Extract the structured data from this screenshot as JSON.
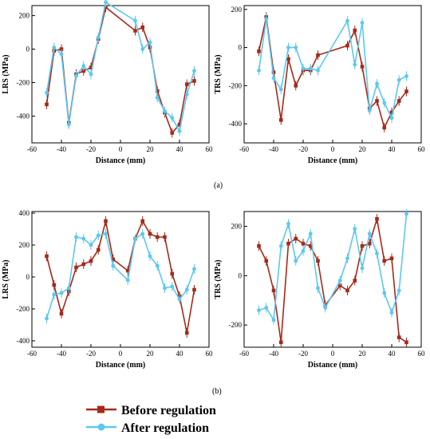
{
  "captions": [
    "(a)",
    "(b)"
  ],
  "legend": [
    {
      "label": "Before regulation",
      "color": "#a52a1a",
      "marker": "square"
    },
    {
      "label": "After regulation",
      "color": "#5cc8f0",
      "marker": "circle"
    }
  ],
  "chart_data": [
    {
      "type": "line",
      "panel": "a-left",
      "xlabel": "Distance (mm)",
      "ylabel": "LRS (MPa)",
      "xlim": [
        -60,
        60
      ],
      "ylim": [
        -560,
        260
      ],
      "xticks": [
        -60,
        -40,
        -20,
        0,
        20,
        40,
        60
      ],
      "yticks": [
        -400,
        -200,
        0,
        200
      ],
      "series": [
        {
          "name": "Before regulation",
          "x": [
            -50,
            -45,
            -40,
            -35,
            -30,
            -25,
            -20,
            -15,
            -10,
            10,
            15,
            20,
            25,
            30,
            35,
            40,
            45,
            50
          ],
          "y": [
            -330,
            -10,
            0,
            -440,
            -150,
            -130,
            -110,
            60,
            250,
            110,
            130,
            10,
            -250,
            -380,
            -500,
            -450,
            -210,
            -190
          ]
        },
        {
          "name": "After regulation",
          "x": [
            -50,
            -45,
            -40,
            -35,
            -30,
            -25,
            -20,
            -15,
            -10,
            10,
            15,
            20,
            25,
            30,
            35,
            40,
            45,
            50
          ],
          "y": [
            -260,
            10,
            -30,
            -450,
            -160,
            -100,
            -150,
            70,
            280,
            170,
            0,
            40,
            -290,
            -370,
            -410,
            -490,
            -270,
            -130
          ]
        }
      ]
    },
    {
      "type": "line",
      "panel": "a-right",
      "xlabel": "Distance (mm)",
      "ylabel": "TRS (MPa)",
      "xlim": [
        -60,
        60
      ],
      "ylim": [
        -500,
        220
      ],
      "xticks": [
        -60,
        -40,
        -20,
        0,
        20,
        40,
        60
      ],
      "yticks": [
        -400,
        -200,
        0,
        200
      ],
      "series": [
        {
          "name": "Before regulation",
          "x": [
            -50,
            -45,
            -40,
            -35,
            -30,
            -25,
            -20,
            -15,
            -10,
            10,
            15,
            20,
            25,
            30,
            35,
            40,
            45,
            50
          ],
          "y": [
            -20,
            160,
            -130,
            -380,
            -60,
            -200,
            -120,
            -120,
            -40,
            10,
            90,
            -100,
            -320,
            -280,
            -420,
            -340,
            -280,
            -230
          ]
        },
        {
          "name": "After regulation",
          "x": [
            -50,
            -45,
            -40,
            -35,
            -30,
            -25,
            -20,
            -15,
            -10,
            10,
            15,
            20,
            25,
            30,
            35,
            40,
            45,
            50
          ],
          "y": [
            -120,
            150,
            -160,
            -220,
            0,
            0,
            -110,
            -110,
            -120,
            140,
            -90,
            130,
            -330,
            -190,
            -290,
            -370,
            -170,
            -150
          ]
        }
      ]
    },
    {
      "type": "line",
      "panel": "b-left",
      "xlabel": "Distance (mm)",
      "ylabel": "LRS (MPa)",
      "xlim": [
        -60,
        60
      ],
      "ylim": [
        -440,
        410
      ],
      "xticks": [
        -60,
        -40,
        -20,
        0,
        20,
        40,
        60
      ],
      "yticks": [
        -400,
        -200,
        0,
        200,
        400
      ],
      "series": [
        {
          "name": "Before regulation",
          "x": [
            -50,
            -45,
            -40,
            -35,
            -30,
            -25,
            -20,
            -15,
            -10,
            -5,
            5,
            10,
            15,
            20,
            25,
            30,
            35,
            40,
            45,
            50
          ],
          "y": [
            130,
            -50,
            -230,
            -90,
            60,
            80,
            100,
            170,
            350,
            110,
            40,
            240,
            350,
            270,
            250,
            250,
            20,
            -120,
            -350,
            -80
          ]
        },
        {
          "name": "After regulation",
          "x": [
            -50,
            -45,
            -40,
            -35,
            -30,
            -25,
            -20,
            -15,
            -10,
            -5,
            5,
            10,
            15,
            20,
            25,
            30,
            35,
            40,
            45,
            50
          ],
          "y": [
            -260,
            -110,
            -100,
            -70,
            250,
            240,
            200,
            260,
            270,
            70,
            -20,
            240,
            270,
            130,
            70,
            -70,
            -60,
            -140,
            -80,
            50
          ]
        }
      ]
    },
    {
      "type": "line",
      "panel": "b-right",
      "xlabel": "Distance (mm)",
      "ylabel": "TRS (MPa)",
      "xlim": [
        -60,
        60
      ],
      "ylim": [
        -290,
        260
      ],
      "xticks": [
        -60,
        -40,
        -20,
        0,
        20,
        40,
        60
      ],
      "yticks": [
        -200,
        0,
        200
      ],
      "series": [
        {
          "name": "Before regulation",
          "x": [
            -50,
            -45,
            -40,
            -35,
            -30,
            -25,
            -20,
            -15,
            -10,
            -5,
            5,
            10,
            15,
            20,
            25,
            30,
            35,
            40,
            45,
            50
          ],
          "y": [
            120,
            60,
            -60,
            -270,
            130,
            150,
            130,
            120,
            60,
            -120,
            -40,
            -60,
            -20,
            120,
            130,
            230,
            60,
            70,
            -250,
            -270
          ]
        },
        {
          "name": "After regulation",
          "x": [
            -50,
            -45,
            -40,
            -35,
            -30,
            -25,
            -20,
            -15,
            -10,
            -5,
            5,
            10,
            15,
            20,
            25,
            30,
            35,
            40,
            45,
            50
          ],
          "y": [
            -140,
            -130,
            -180,
            120,
            210,
            60,
            100,
            170,
            -50,
            -130,
            -20,
            70,
            190,
            30,
            170,
            90,
            -70,
            -150,
            -60,
            250
          ]
        }
      ]
    }
  ]
}
